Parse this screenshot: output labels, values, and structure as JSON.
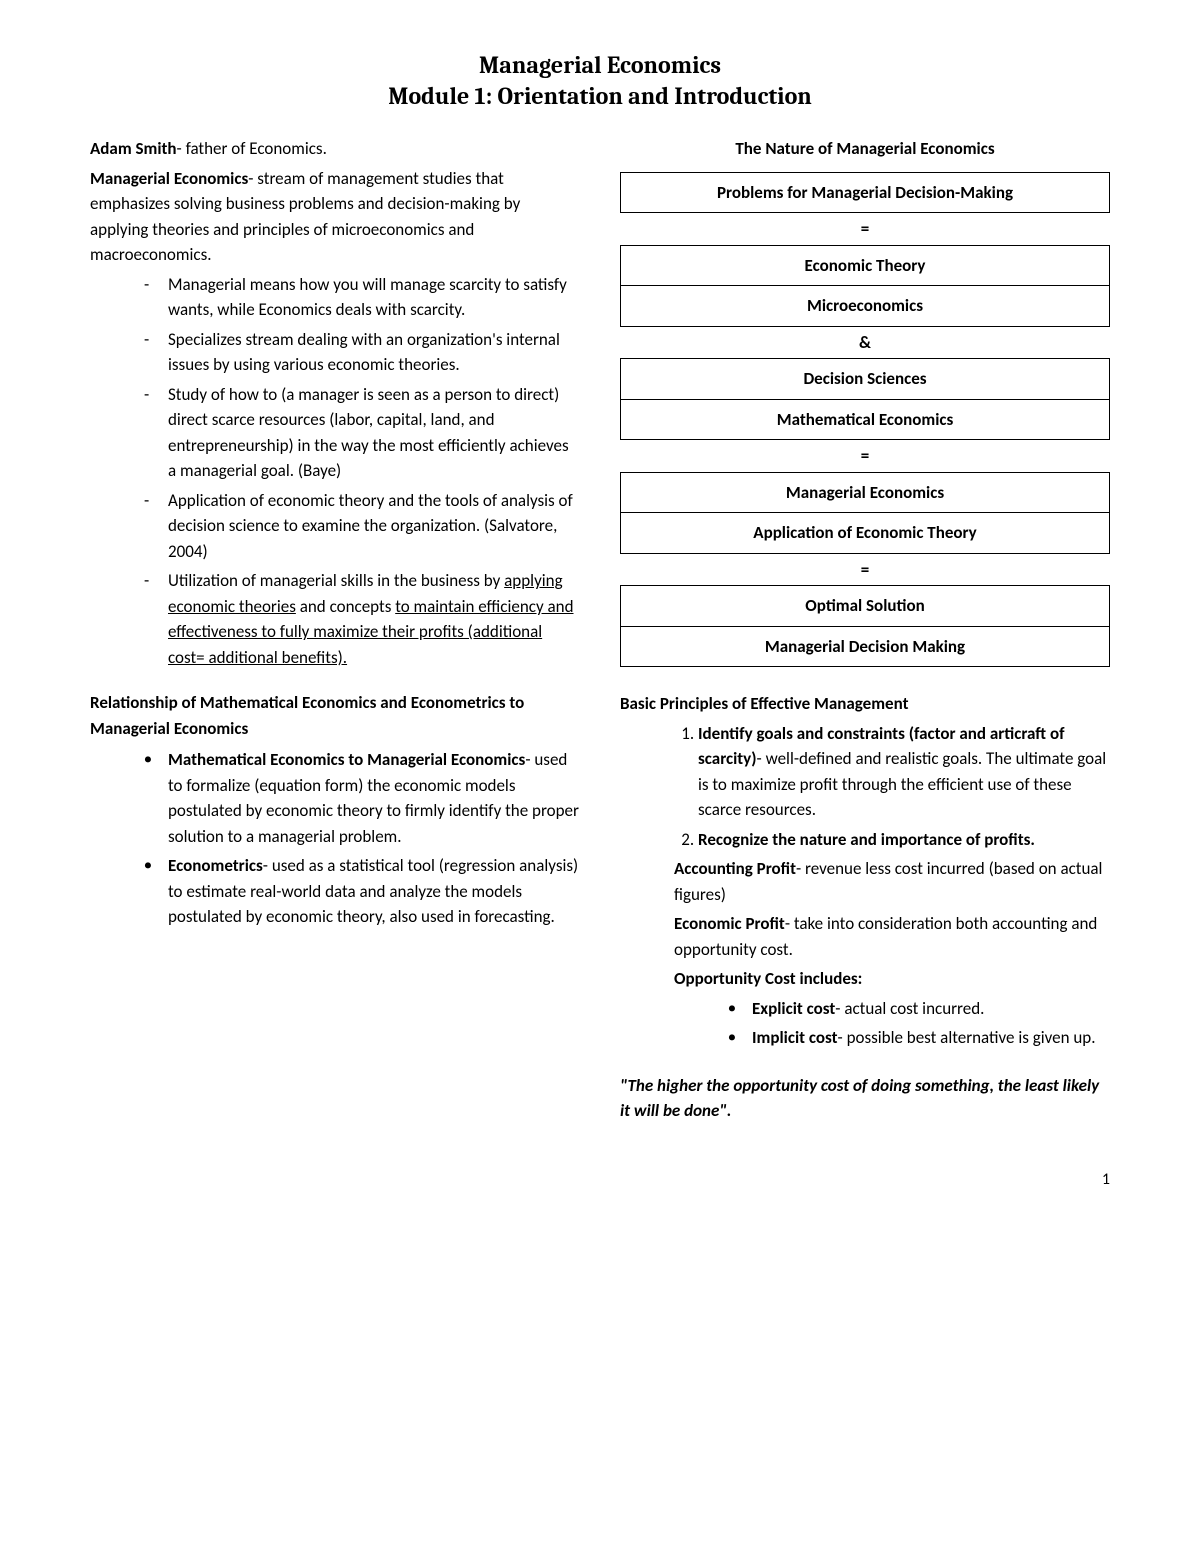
{
  "title": {
    "line1": "Managerial Economics",
    "line2": "Module 1: Orientation and Introduction"
  },
  "leftCol": {
    "p1": {
      "bold": "Adam Smith",
      "rest": "- father of Economics."
    },
    "p2": {
      "bold": "Managerial Economics",
      "rest": "- stream of management studies that emphasizes solving business problems and decision-making by applying theories and principles of microeconomics and macroeconomics."
    },
    "dashes": [
      "Managerial means how you will manage scarcity to satisfy wants, while Economics deals with scarcity.",
      "Specializes stream dealing with an organization's internal issues by using various economic theories.",
      "Study of how to (a manager is seen as a person to direct) direct scarce resources (labor, capital, land, and entrepreneurship)  in the way the most efficiently achieves a managerial goal. (Baye)",
      "Application of economic theory and the tools of analysis of decision science to examine the organization. (Salvatore, 2004)"
    ],
    "dash5": {
      "pre": "Utilization of managerial skills in the business by ",
      "u1": "applying economic theories",
      "mid": " and concepts ",
      "u2": "to maintain efficiency and effectiveness to fully maximize their profits (additional cost= additional benefits)."
    },
    "heading2": "Relationship of Mathematical Economics and Econometrics to Managerial Economics",
    "bulletItems": [
      {
        "bold": "Mathematical Economics to Managerial Economics",
        "rest": "- used to formalize (equation form) the economic models postulated by economic theory to firmly identify the proper solution to a managerial problem."
      },
      {
        "bold": "Econometrics",
        "rest": "- used as a statistical tool (regression analysis) to estimate real-world data and analyze the models postulated by economic theory, also used in forecasting."
      }
    ]
  },
  "rightCol": {
    "diagramTitle": "The Nature of Managerial Economics",
    "boxes": {
      "b1": "Problems for Managerial Decision-Making",
      "c1": "=",
      "b2a": "Economic Theory",
      "b2b": "Microeconomics",
      "c2": "&",
      "b3a": "Decision Sciences",
      "b3b": "Mathematical Economics",
      "c3": "=",
      "b4a": "Managerial Economics",
      "b4b": "Application of Economic Theory",
      "c4": "=",
      "b5a": "Optimal Solution",
      "b5b": "Managerial Decision Making"
    },
    "heading": "Basic Principles of Effective Management",
    "ol1": {
      "bold": "Identify goals and constraints (factor and articraft of scarcity)",
      "rest": "- well-defined and realistic goals. The ultimate goal is to maximize profit through the efficient use of these scarce resources."
    },
    "ol2": {
      "bold": "Recognize the nature and importance of profits."
    },
    "ap": {
      "bold": "Accounting Profit",
      "rest": "- revenue less cost incurred (based on actual figures)"
    },
    "ep": {
      "bold": "Economic Profit",
      "rest": "- take into consideration both accounting and opportunity cost."
    },
    "oc": "Opportunity Cost includes:",
    "costs": [
      {
        "bold": "Explicit cost",
        "rest": "- actual cost incurred."
      },
      {
        "bold": "Implicit cost",
        "rest": "- possible best alternative is given up."
      }
    ],
    "quote": "\"The higher the opportunity cost of doing something, the least likely it will be done\"."
  },
  "pageNum": "1"
}
